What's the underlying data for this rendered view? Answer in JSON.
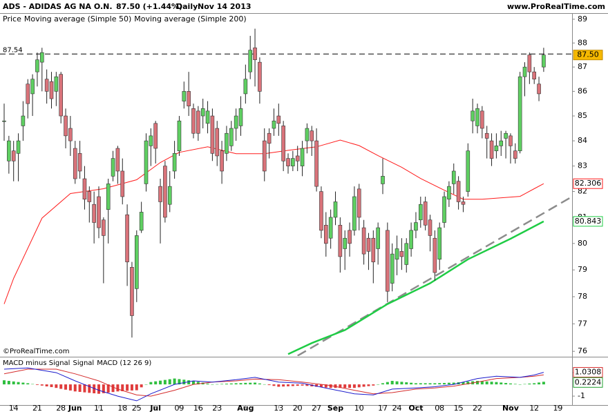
{
  "header": {
    "symbol": "ADS - ADIDAS AG NA O.N.",
    "quote": "87.50 (+1.44%)",
    "period": "Daily",
    "date": "Nov 14 2013",
    "site": "www.ProRealTime.com"
  },
  "chart_data": [
    {
      "type": "candlestick",
      "price_label": "Price",
      "watermark": "©ProRealTime.com",
      "log_scale": true,
      "grid": false,
      "up_color": "#5fcf62",
      "down_color": "#d9737a",
      "xlim": [
        -0.876,
        120.0
      ],
      "ylim": [
        75.83,
        89.23
      ],
      "yticks": [
        76,
        77,
        78,
        79,
        80,
        81,
        82,
        83,
        84,
        85,
        86,
        87,
        88,
        89
      ],
      "xticks": [
        {
          "value": 2,
          "label": "14"
        },
        {
          "value": 7,
          "label": "21"
        },
        {
          "value": 12,
          "label": "28"
        },
        {
          "value": 15,
          "label": "Jun"
        },
        {
          "value": 20,
          "label": "11"
        },
        {
          "value": 25,
          "label": "18"
        },
        {
          "value": 28,
          "label": "25"
        },
        {
          "value": 32,
          "label": "Jul"
        },
        {
          "value": 37,
          "label": "09"
        },
        {
          "value": 41,
          "label": "16"
        },
        {
          "value": 45,
          "label": "23"
        },
        {
          "value": 51,
          "label": "Aug"
        },
        {
          "value": 58,
          "label": "13"
        },
        {
          "value": 62,
          "label": "20"
        },
        {
          "value": 66,
          "label": "27"
        },
        {
          "value": 70,
          "label": "Sep"
        },
        {
          "value": 75,
          "label": "10"
        },
        {
          "value": 80,
          "label": "17"
        },
        {
          "value": 83,
          "label": "24"
        },
        {
          "value": 87,
          "label": "Oct"
        },
        {
          "value": 92,
          "label": "08"
        },
        {
          "value": 96,
          "label": "15"
        },
        {
          "value": 100,
          "label": "22"
        },
        {
          "value": 107,
          "label": "Nov"
        },
        {
          "value": 112,
          "label": "12"
        },
        {
          "value": 117,
          "label": "19"
        }
      ],
      "open": [
        84.8,
        83.2,
        83.6,
        83.5,
        84.6,
        86.3,
        85.9,
        86.8,
        87.2,
        86.5,
        86.4,
        86,
        86.7,
        85,
        84.5,
        83.7,
        83.5,
        82.5,
        82,
        81.5,
        81.8,
        80.9,
        81.3,
        82.6,
        83.7,
        82.8,
        81.1,
        79.1,
        78.3,
        80.5,
        82.3,
        83.8,
        84.7,
        82.2,
        83,
        81.5,
        82.8,
        83.6,
        85.6,
        86,
        85.3,
        85.2,
        85,
        84.7,
        85,
        84.5,
        83.6,
        83.5,
        83.8,
        84.5,
        84.6,
        85.9,
        86.8,
        87.8,
        87.2,
        84,
        84.3,
        84.5,
        85,
        84.6,
        83.3,
        83,
        83.4,
        83,
        84,
        84.4,
        84,
        82,
        80.7,
        80.2,
        81,
        80.7,
        79.8,
        80.5,
        80.5,
        82.1,
        80.6,
        80.2,
        80.2,
        79.8,
        82.3,
        80.5,
        78.5,
        79.4,
        79.7,
        79.2,
        79.8,
        80.5,
        80.9,
        81.6,
        80.9,
        80.2,
        79.4,
        80.8,
        81.7,
        82.3,
        82.4,
        81.6,
        82,
        84.8,
        84.6,
        85.2,
        84.3,
        84,
        83.6,
        83.8,
        84.1,
        84.2,
        83.6,
        83.6,
        86.6,
        87.5,
        86.8,
        86.3,
        87
      ],
      "high": [
        85.5,
        84.2,
        84,
        84.3,
        85.6,
        86.5,
        86.7,
        87.6,
        87.8,
        86.9,
        86.8,
        86.8,
        86.8,
        85.3,
        85,
        84,
        84,
        83,
        82.2,
        82,
        82.2,
        81,
        82.5,
        83.6,
        83.8,
        83.3,
        81.5,
        79.3,
        80.5,
        81.6,
        84.3,
        84.5,
        84.8,
        82.5,
        83.2,
        82.8,
        84,
        85,
        86.4,
        86.8,
        85.5,
        85.4,
        85.7,
        85.6,
        85.3,
        84.8,
        84,
        84.6,
        84.8,
        85.3,
        85.8,
        87.1,
        88.3,
        88.6,
        87.4,
        84.5,
        84.5,
        85.3,
        85.5,
        84.8,
        83.5,
        83.6,
        83.8,
        84,
        84.7,
        84.6,
        84.5,
        82.2,
        81.2,
        81.3,
        82,
        81,
        80.5,
        80.8,
        82.2,
        82.3,
        80.9,
        80.4,
        80.5,
        80.8,
        83.3,
        80.8,
        80,
        80.3,
        80.2,
        80.2,
        80.8,
        81.2,
        81.8,
        81.8,
        81.1,
        80.5,
        80.8,
        82,
        82.4,
        83.1,
        82.6,
        81.8,
        83.9,
        85.7,
        85.5,
        85.4,
        84.6,
        84.3,
        84.3,
        84.4,
        84.4,
        84.3,
        83.9,
        86.8,
        87.2,
        87.6,
        87,
        86.6,
        87.8
      ],
      "low": [
        84,
        82.7,
        82.4,
        82.4,
        84,
        84.9,
        85,
        86.2,
        86,
        85.5,
        85.3,
        85.4,
        84.7,
        83.7,
        83.4,
        82.3,
        82.5,
        81.3,
        80.8,
        80,
        80.2,
        78.5,
        80,
        82.4,
        82.3,
        81.5,
        78.4,
        76.5,
        77.8,
        80.4,
        82,
        83,
        83.1,
        80,
        80.8,
        81.2,
        82.5,
        83.4,
        85.3,
        85,
        84.1,
        84,
        84.5,
        84.3,
        83.2,
        83,
        82.3,
        83.2,
        83.6,
        84,
        84.2,
        85.5,
        86.5,
        86.2,
        85.5,
        82.4,
        83.3,
        84.2,
        84.2,
        82.8,
        82.7,
        82.8,
        82.8,
        82.6,
        83.5,
        83.4,
        82,
        80.2,
        79.5,
        79.8,
        80.7,
        78.9,
        79,
        79.5,
        80.3,
        80.5,
        79.2,
        79,
        78.5,
        79.2,
        81.9,
        77.8,
        78.2,
        78.8,
        79,
        78.9,
        79.5,
        80.2,
        80.6,
        80.5,
        79.7,
        78.6,
        79,
        80.6,
        81.4,
        81.9,
        81.3,
        81.2,
        81.8,
        84.3,
        84.3,
        84.1,
        83.3,
        83,
        83.3,
        83.4,
        83.3,
        83.1,
        83.1,
        83.5,
        85.8,
        86.3,
        86.3,
        85.6,
        86.8
      ],
      "close": [
        84.8,
        84,
        83.2,
        84,
        85,
        85.5,
        86.5,
        87.3,
        87.6,
        86,
        85.7,
        86.6,
        85,
        84.2,
        84,
        82.5,
        82.8,
        81.7,
        81.6,
        80.8,
        80.6,
        80.3,
        82.3,
        83.3,
        82.8,
        81.8,
        79.3,
        77.3,
        80.3,
        81.2,
        84,
        84.2,
        83.7,
        81.6,
        81,
        82.2,
        83.5,
        84.8,
        86,
        85.4,
        84.3,
        84.3,
        85.3,
        85.2,
        83.5,
        83.4,
        82.8,
        84.3,
        84.5,
        85,
        85.3,
        86.5,
        87.7,
        87.3,
        86,
        82.8,
        83.9,
        84.8,
        84.7,
        83.2,
        83,
        83.3,
        83.2,
        83.7,
        84.5,
        84,
        82.2,
        80.5,
        80,
        81,
        81.6,
        79.5,
        80.2,
        80,
        81.8,
        81,
        79.6,
        79.7,
        79.3,
        80.6,
        82.6,
        78.2,
        79.6,
        79.8,
        79.5,
        80,
        80.5,
        80.8,
        81.5,
        80.7,
        80.3,
        78.9,
        80.6,
        81.8,
        82.2,
        82.8,
        81.6,
        81.5,
        83.6,
        85.2,
        85.3,
        84.5,
        84.1,
        83.3,
        83.8,
        84,
        84.3,
        83.8,
        83.3,
        86.6,
        87,
        86.8,
        86.5,
        85.9,
        87.5
      ],
      "last_label": "87.50",
      "last_color": "#f5b800",
      "hline": 87.54,
      "trendline": {
        "color": "#8c8c8c",
        "x": [
          62,
          120
        ],
        "values": [
          75.84,
          81.8
        ]
      },
      "series": [
        {
          "name": "Moving average (Simple 50)",
          "color": "#ff1a1a",
          "x": [
            0,
            2,
            8,
            14,
            21,
            28,
            33,
            37,
            43,
            49,
            55,
            60,
            66,
            71,
            75,
            79,
            84,
            88,
            93,
            97,
            101,
            109,
            112,
            114
          ],
          "values": [
            77.73,
            78.68,
            80.97,
            81.92,
            82.11,
            82.46,
            83.14,
            83.54,
            83.76,
            83.49,
            83.49,
            83.62,
            83.76,
            84.03,
            83.81,
            83.41,
            82.95,
            82.51,
            82.05,
            81.7,
            81.7,
            81.81,
            82.11,
            82.306
          ]
        },
        {
          "name": "Moving average (Simple 200)",
          "color": "#1fcc45",
          "x": [
            60,
            65,
            72,
            81,
            90,
            98,
            107,
            114
          ],
          "values": [
            75.9,
            76.3,
            76.77,
            77.73,
            78.5,
            79.4,
            80.18,
            80.843
          ]
        }
      ]
    },
    {
      "type": "macd",
      "xlim": [
        -0.876,
        120.0
      ],
      "ylim": [
        -1.76,
        2.24
      ],
      "yticks": [
        -1,
        1
      ],
      "histogram": {
        "name": "MACD minus Signal",
        "color": "#2fbf3f",
        "negative_color": "#e03c3c",
        "values": [
          0.35,
          0.3,
          0.25,
          0.2,
          0.15,
          0.1,
          0.03,
          -0.05,
          -0.1,
          -0.17,
          -0.23,
          -0.3,
          -0.38,
          -0.45,
          -0.52,
          -0.6,
          -0.64,
          -0.68,
          -0.72,
          -0.76,
          -0.8,
          -0.75,
          -0.7,
          -0.65,
          -0.6,
          -0.58,
          -0.55,
          -0.52,
          -0.5,
          -0.25,
          0,
          0.2,
          0.26,
          0.32,
          0.38,
          0.44,
          0.5,
          0.45,
          0.4,
          0.35,
          0.3,
          0.22,
          0.15,
          0.07,
          0,
          0.02,
          0.04,
          0.06,
          0.08,
          0.1,
          0.11,
          0.13,
          0.14,
          0.15,
          0.08,
          0.01,
          -0.06,
          -0.13,
          -0.2,
          -0.18,
          -0.16,
          -0.14,
          -0.12,
          -0.1,
          -0.13,
          -0.17,
          -0.2,
          -0.23,
          -0.27,
          -0.3,
          -0.3,
          -0.3,
          -0.3,
          -0.3,
          -0.3,
          -0.25,
          -0.2,
          -0.15,
          -0.1,
          0,
          0.1,
          0.2,
          0.3,
          0.26,
          0.22,
          0.18,
          0.14,
          0.1,
          0.1,
          0.1,
          0.1,
          0.1,
          0.11,
          0.12,
          0.14,
          0.15,
          0.18,
          0.21,
          0.24,
          0.27,
          0.3,
          0.28,
          0.25,
          0.23,
          0.2,
          0.16,
          0.12,
          0.08,
          0.04,
          0,
          0.03,
          0.07,
          0.1,
          0.16,
          0.2224
        ]
      },
      "series": [
        {
          "name": "Signal",
          "color": "#d42a2a",
          "x": [
            0,
            5,
            11,
            15,
            20,
            24,
            28,
            31,
            36,
            40,
            44,
            49,
            53,
            58,
            63,
            69,
            74,
            78,
            82,
            87,
            91,
            95,
            100,
            104,
            109,
            112,
            114
          ],
          "values": [
            0.9,
            1.3,
            1.3,
            0.9,
            0.3,
            -0.4,
            -0.9,
            -1.0,
            -0.5,
            0.0,
            0.2,
            0.3,
            0.45,
            0.4,
            0.2,
            -0.1,
            -0.5,
            -0.8,
            -0.7,
            -0.4,
            -0.3,
            -0.15,
            0.2,
            0.5,
            0.6,
            0.7,
            0.8084
          ]
        },
        {
          "name": "MACD (12 26 9)",
          "color": "#1a1acc",
          "x": [
            0,
            5,
            11,
            15,
            20,
            24,
            28,
            31,
            36,
            40,
            44,
            49,
            53,
            58,
            63,
            69,
            74,
            78,
            82,
            87,
            91,
            95,
            100,
            104,
            109,
            112,
            114
          ],
          "values": [
            1.3,
            1.4,
            1.0,
            0.3,
            -0.5,
            -1.0,
            -1.4,
            -0.8,
            0.0,
            0.3,
            0.2,
            0.4,
            0.6,
            0.2,
            0.1,
            -0.4,
            -0.8,
            -0.9,
            -0.4,
            -0.3,
            -0.2,
            0.0,
            0.5,
            0.7,
            0.6,
            0.8,
            1.0308
          ]
        }
      ]
    }
  ]
}
